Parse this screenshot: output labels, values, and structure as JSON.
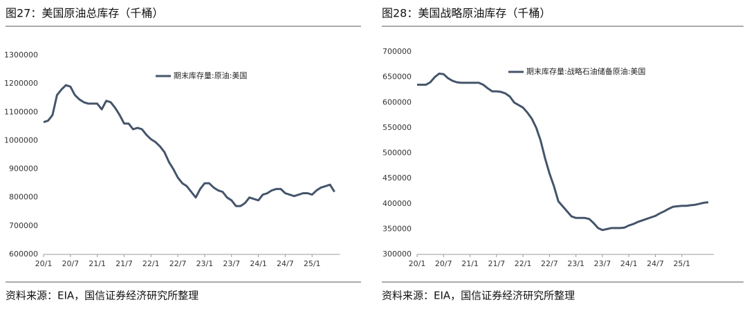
{
  "chart_data": [
    {
      "type": "line",
      "title": "图27：美国原油总库存（千桶）",
      "source": "资料来源：EIA，国信证券经济研究所整理",
      "categories": [
        "20/1",
        null,
        null,
        null,
        null,
        null,
        "20/7",
        null,
        null,
        null,
        null,
        null,
        "21/1",
        null,
        null,
        null,
        null,
        null,
        "21/7",
        null,
        null,
        null,
        null,
        null,
        "22/1",
        null,
        null,
        null,
        null,
        null,
        "22/7",
        null,
        null,
        null,
        null,
        null,
        "23/1",
        null,
        null,
        null,
        null,
        null,
        "23/7",
        null,
        null,
        null,
        null,
        null,
        "24/1",
        null,
        null,
        null,
        null,
        null,
        "24/7",
        null,
        null,
        null,
        null,
        null,
        "25/1",
        null,
        null,
        null,
        null,
        null
      ],
      "series": [
        {
          "name": "期末库存量:原油:美国",
          "color": "#44546a",
          "values": [
            1065000,
            1070000,
            1090000,
            1160000,
            1180000,
            1195000,
            1190000,
            1160000,
            1145000,
            1135000,
            1130000,
            1130000,
            1130000,
            1110000,
            1140000,
            1135000,
            1115000,
            1090000,
            1060000,
            1060000,
            1040000,
            1045000,
            1040000,
            1020000,
            1005000,
            995000,
            980000,
            960000,
            925000,
            900000,
            870000,
            850000,
            840000,
            820000,
            800000,
            830000,
            850000,
            850000,
            835000,
            825000,
            820000,
            800000,
            790000,
            770000,
            770000,
            780000,
            800000,
            795000,
            790000,
            810000,
            815000,
            825000,
            830000,
            830000,
            815000,
            810000,
            805000,
            810000,
            815000,
            815000,
            810000,
            825000,
            835000,
            840000,
            845000,
            820000
          ]
        }
      ],
      "ylim": [
        600000,
        1300000
      ],
      "yticks": [
        600000,
        700000,
        800000,
        900000,
        1000000,
        1100000,
        1200000,
        1300000
      ],
      "legend": "top"
    },
    {
      "type": "line",
      "title": "图28：美国战略原油库存（千桶）",
      "source": "资料来源：EIA，国信证券经济研究所整理",
      "categories": [
        "20/1",
        null,
        null,
        null,
        null,
        null,
        "20/7",
        null,
        null,
        null,
        null,
        null,
        "21/1",
        null,
        null,
        null,
        null,
        null,
        "21/7",
        null,
        null,
        null,
        null,
        null,
        "22/1",
        null,
        null,
        null,
        null,
        null,
        "22/7",
        null,
        null,
        null,
        null,
        null,
        "23/1",
        null,
        null,
        null,
        null,
        null,
        "23/7",
        null,
        null,
        null,
        null,
        null,
        "24/1",
        null,
        null,
        null,
        null,
        null,
        "24/7",
        null,
        null,
        null,
        null,
        null,
        "25/1",
        null,
        null,
        null,
        null,
        null,
        null
      ],
      "series": [
        {
          "name": "期末库存量:战略石油储备原油:美国",
          "color": "#44546a",
          "values": [
            635000,
            635000,
            635000,
            640000,
            650000,
            657000,
            656000,
            648000,
            643000,
            640000,
            639000,
            639000,
            639000,
            639000,
            639000,
            635000,
            628000,
            622000,
            622000,
            621000,
            618000,
            612000,
            600000,
            595000,
            590000,
            580000,
            568000,
            550000,
            525000,
            490000,
            460000,
            435000,
            405000,
            395000,
            385000,
            375000,
            372000,
            372000,
            372000,
            370000,
            362000,
            352000,
            348000,
            350000,
            352000,
            352000,
            352000,
            353000,
            357000,
            360000,
            364000,
            367000,
            370000,
            373000,
            376000,
            381000,
            385000,
            390000,
            394000,
            395000,
            396000,
            396000,
            397000,
            398000,
            400000,
            402000,
            403000
          ]
        }
      ],
      "ylim": [
        300000,
        700000
      ],
      "yticks": [
        300000,
        350000,
        400000,
        450000,
        500000,
        550000,
        600000,
        650000,
        700000
      ],
      "legend": "top"
    }
  ]
}
